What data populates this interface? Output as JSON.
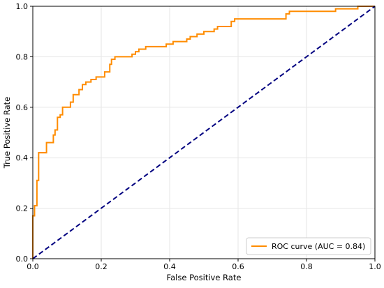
{
  "chart_data": {
    "type": "line",
    "title": "",
    "xlabel": "False Positive Rate",
    "ylabel": "True Positive Rate",
    "xlim": [
      0.0,
      1.0
    ],
    "ylim": [
      0.0,
      1.0
    ],
    "x_ticks": [
      "0.0",
      "0.2",
      "0.4",
      "0.6",
      "0.8",
      "1.0"
    ],
    "y_ticks": [
      "0.0",
      "0.2",
      "0.4",
      "0.6",
      "0.8",
      "1.0"
    ],
    "grid": true,
    "legend": {
      "placement": "lower-right",
      "entries": [
        "ROC curve (AUC = 0.84)"
      ]
    },
    "series": [
      {
        "name": "ROC curve (AUC = 0.84)",
        "color": "#ff8c00",
        "style": "step",
        "x": [
          0.0,
          0.0,
          0.005,
          0.005,
          0.012,
          0.012,
          0.017,
          0.017,
          0.04,
          0.04,
          0.06,
          0.06,
          0.065,
          0.065,
          0.072,
          0.072,
          0.08,
          0.08,
          0.087,
          0.087,
          0.11,
          0.11,
          0.118,
          0.118,
          0.135,
          0.135,
          0.145,
          0.145,
          0.155,
          0.155,
          0.17,
          0.17,
          0.185,
          0.185,
          0.21,
          0.21,
          0.225,
          0.225,
          0.23,
          0.23,
          0.24,
          0.24,
          0.29,
          0.29,
          0.3,
          0.3,
          0.31,
          0.31,
          0.33,
          0.33,
          0.39,
          0.39,
          0.41,
          0.41,
          0.45,
          0.45,
          0.46,
          0.46,
          0.48,
          0.48,
          0.5,
          0.5,
          0.53,
          0.53,
          0.54,
          0.54,
          0.58,
          0.58,
          0.59,
          0.59,
          0.74,
          0.74,
          0.75,
          0.75,
          0.885,
          0.885,
          0.95,
          0.95,
          1.0
        ],
        "y": [
          0.0,
          0.17,
          0.17,
          0.21,
          0.21,
          0.31,
          0.31,
          0.42,
          0.42,
          0.46,
          0.46,
          0.49,
          0.49,
          0.51,
          0.51,
          0.56,
          0.56,
          0.57,
          0.57,
          0.6,
          0.6,
          0.62,
          0.62,
          0.65,
          0.65,
          0.67,
          0.67,
          0.69,
          0.69,
          0.7,
          0.7,
          0.71,
          0.71,
          0.72,
          0.72,
          0.74,
          0.74,
          0.77,
          0.77,
          0.79,
          0.79,
          0.8,
          0.8,
          0.81,
          0.81,
          0.82,
          0.82,
          0.83,
          0.83,
          0.84,
          0.84,
          0.85,
          0.85,
          0.86,
          0.86,
          0.87,
          0.87,
          0.88,
          0.88,
          0.89,
          0.89,
          0.9,
          0.9,
          0.91,
          0.91,
          0.92,
          0.92,
          0.94,
          0.94,
          0.95,
          0.95,
          0.97,
          0.97,
          0.98,
          0.98,
          0.99,
          0.99,
          1.0,
          1.0
        ]
      },
      {
        "color": "#000080",
        "style": "dashed",
        "x": [
          0.0,
          1.0
        ],
        "y": [
          0.0,
          1.0
        ]
      }
    ]
  }
}
